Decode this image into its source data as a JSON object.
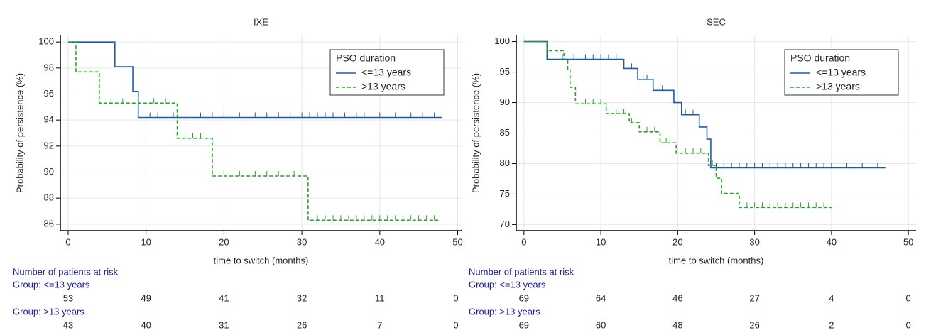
{
  "chart_data": [
    {
      "type": "km",
      "title": "IXE",
      "xlabel": "time to switch (months)",
      "ylabel": "Probability of persistence (%)",
      "xlim": [
        -1,
        50.5
      ],
      "ylim": [
        85.5,
        100.5
      ],
      "xticks": [
        0,
        10,
        20,
        30,
        40,
        50
      ],
      "yticks": [
        86,
        88,
        90,
        92,
        94,
        96,
        98,
        100
      ],
      "grid": true,
      "legend_title": "PSO duration",
      "legend": "upper right",
      "series": [
        {
          "name": "<=13 years",
          "color": "#1f5aa6",
          "dash": false,
          "x": [
            0,
            6,
            8.3,
            9,
            48
          ],
          "values": [
            100,
            98.1,
            96.2,
            94.2,
            94.2
          ],
          "censored": [
            10.5,
            11.5,
            13.5,
            15,
            17,
            18.5,
            20,
            22,
            24,
            25.5,
            27,
            28.5,
            30,
            31,
            32,
            33,
            34,
            35.5,
            37,
            38,
            40,
            42,
            44,
            45.5,
            47
          ]
        },
        {
          "name": ">13 years",
          "color": "#22a622",
          "dash": true,
          "x": [
            0,
            1,
            4,
            14,
            18.5,
            30.8,
            47.5
          ],
          "values": [
            100,
            97.7,
            95.3,
            92.6,
            89.7,
            86.3,
            86.3
          ],
          "censored": [
            5.5,
            7,
            9,
            11,
            12.5,
            15,
            16,
            17,
            20,
            22,
            24,
            25.5,
            27,
            29,
            32,
            33,
            34,
            35,
            36,
            37,
            38,
            39,
            40,
            41,
            42,
            43,
            44,
            45,
            46,
            47
          ]
        }
      ],
      "risk_table": {
        "title": "Number of patients at risk",
        "groups": [
          {
            "label": "Group: <=13 years",
            "counts": [
              53,
              49,
              41,
              32,
              11,
              0
            ]
          },
          {
            "label": "Group: >13 years",
            "counts": [
              43,
              40,
              31,
              26,
              7,
              0
            ]
          }
        ]
      }
    },
    {
      "type": "km",
      "title": "SEC",
      "xlabel": "time to switch (months)",
      "ylabel": "Probability of persistence (%)",
      "xlim": [
        -1,
        51
      ],
      "ylim": [
        69,
        101
      ],
      "xticks": [
        0,
        10,
        20,
        30,
        40,
        50
      ],
      "yticks": [
        70,
        75,
        80,
        85,
        90,
        95,
        100
      ],
      "grid": true,
      "legend_title": "PSO duration",
      "legend": "upper right",
      "series": [
        {
          "name": "<=13 years",
          "color": "#1f5aa6",
          "dash": false,
          "x": [
            0,
            3,
            13,
            14.8,
            16.8,
            19.5,
            20.5,
            22.8,
            23.8,
            24.3,
            47
          ],
          "values": [
            100,
            97.1,
            95.6,
            93.8,
            92,
            90,
            88,
            86,
            84,
            79.3,
            79.3
          ],
          "censored": [
            5,
            6.5,
            8,
            9,
            10,
            11,
            12,
            14,
            15.5,
            16,
            18,
            21,
            22,
            25,
            26,
            27,
            28,
            29,
            30,
            31,
            32,
            33,
            34,
            35,
            36,
            37,
            38,
            39,
            40,
            42,
            44,
            46
          ]
        },
        {
          "name": ">13 years",
          "color": "#22a622",
          "dash": true,
          "x": [
            0,
            3,
            5.2,
            5.7,
            6,
            6.7,
            10.7,
            13.7,
            15,
            17.7,
            19.8,
            24,
            25,
            25.7,
            28,
            40
          ],
          "values": [
            100,
            98.5,
            97,
            95.5,
            92.5,
            89.8,
            88.2,
            86.7,
            85.2,
            83.4,
            81.7,
            79.7,
            77.6,
            75.1,
            72.8,
            72.8
          ],
          "censored": [
            8,
            9,
            10,
            12,
            13,
            14,
            16,
            17,
            18.5,
            19,
            21,
            22,
            23,
            24.5,
            29,
            30,
            31,
            32,
            33,
            34,
            35,
            36,
            37,
            38,
            39
          ]
        }
      ],
      "risk_table": {
        "title": "Number of patients at risk",
        "groups": [
          {
            "label": "Group: <=13 years",
            "counts": [
              69,
              64,
              46,
              27,
              4,
              0
            ]
          },
          {
            "label": "Group: >13 years",
            "counts": [
              69,
              60,
              48,
              26,
              2,
              0
            ]
          }
        ]
      }
    }
  ]
}
